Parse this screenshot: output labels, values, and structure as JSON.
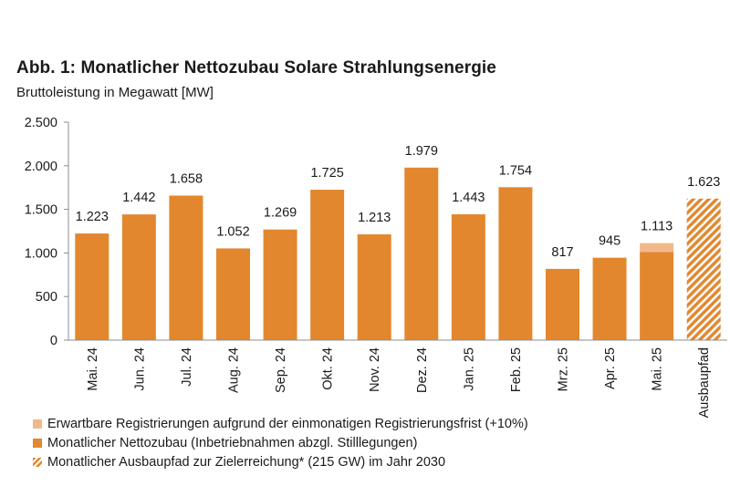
{
  "chart_data": {
    "type": "bar",
    "title": "Abb. 1: Monatlicher Nettozubau Solare Strahlungsenergie",
    "subtitle": "Bruttoleistung in Megawatt [MW]",
    "categories": [
      "Mai. 24",
      "Jun. 24",
      "Jul. 24",
      "Aug. 24",
      "Sep. 24",
      "Okt. 24",
      "Nov. 24",
      "Dez. 24",
      "Jan. 25",
      "Feb. 25",
      "Mrz. 25",
      "Apr. 25",
      "Mai. 25",
      "Ausbaupfad"
    ],
    "series": [
      {
        "name": "Monatlicher Nettozubau (Inbetriebnahmen abzgl. Stilllegungen)",
        "values": [
          1223,
          1442,
          1658,
          1052,
          1269,
          1725,
          1213,
          1979,
          1443,
          1754,
          817,
          945,
          1012,
          null
        ],
        "color": "#e2872e"
      },
      {
        "name": "Erwartbare Registrierungen aufgrund der einmonatigen Registrierungsfrist (+10%)",
        "values": [
          null,
          null,
          null,
          null,
          null,
          null,
          null,
          null,
          null,
          null,
          null,
          null,
          101,
          null
        ],
        "color": "#f1b98a"
      },
      {
        "name": "Monatlicher Ausbaupfad zur Zielerreichung* (215 GW) im Jahr 2030",
        "values": [
          null,
          null,
          null,
          null,
          null,
          null,
          null,
          null,
          null,
          null,
          null,
          null,
          null,
          1623
        ],
        "color": "#e2872e",
        "pattern": "diagonal-hatch"
      }
    ],
    "data_labels": [
      "1.223",
      "1.442",
      "1.658",
      "1.052",
      "1.269",
      "1.725",
      "1.213",
      "1.979",
      "1.443",
      "1.754",
      "817",
      "945",
      "1.113",
      "1.623"
    ],
    "ylim": [
      0,
      2500
    ],
    "yticks": [
      0,
      500,
      1000,
      1500,
      2000,
      2500
    ],
    "ytick_labels": [
      "0",
      "500",
      "1.000",
      "1.500",
      "2.000",
      "2.500"
    ],
    "grid": false,
    "legend_position": "bottom"
  },
  "legend": [
    {
      "label": "Erwartbare Registrierungen aufgrund der einmonatigen Registrierungsfrist (+10%)",
      "swatch": "light"
    },
    {
      "label": "Monatlicher Nettozubau (Inbetriebnahmen abzgl. Stilllegungen)",
      "swatch": "main"
    },
    {
      "label": "Monatlicher Ausbaupfad zur Zielerreichung* (215 GW) im Jahr 2030",
      "swatch": "hatch"
    }
  ]
}
